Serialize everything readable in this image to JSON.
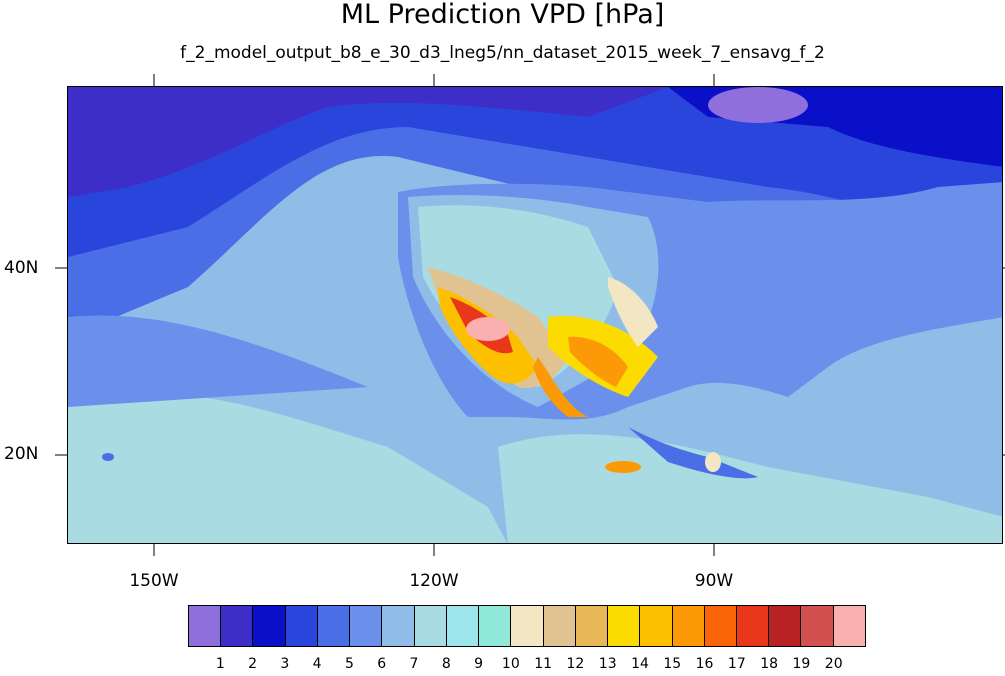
{
  "title": "ML Prediction VPD [hPa]",
  "subtitle": "f_2_model_output_b8_e_30_d3_lneg5/nn_dataset_2015_week_7_ensavg_f_2",
  "lat_labels": [
    "40N",
    "20N"
  ],
  "lon_labels": [
    "150W",
    "120W",
    "90W"
  ],
  "colorbar": {
    "colors": [
      "#8f6fdc",
      "#3d2ec7",
      "#0a10c8",
      "#2a45dc",
      "#4a6ee6",
      "#6a90ec",
      "#8fbde8",
      "#a8dce2",
      "#9ee6ee",
      "#8fe8d8",
      "#f3e6c2",
      "#e0c391",
      "#e8b758",
      "#fcdc00",
      "#fcc000",
      "#fb9a06",
      "#fb6408",
      "#e8371a",
      "#b82222",
      "#d25050",
      "#fbb0b0"
    ],
    "labels": [
      "1",
      "2",
      "3",
      "4",
      "5",
      "6",
      "7",
      "8",
      "9",
      "10",
      "11",
      "12",
      "13",
      "14",
      "15",
      "16",
      "17",
      "18",
      "19",
      "20"
    ]
  }
}
